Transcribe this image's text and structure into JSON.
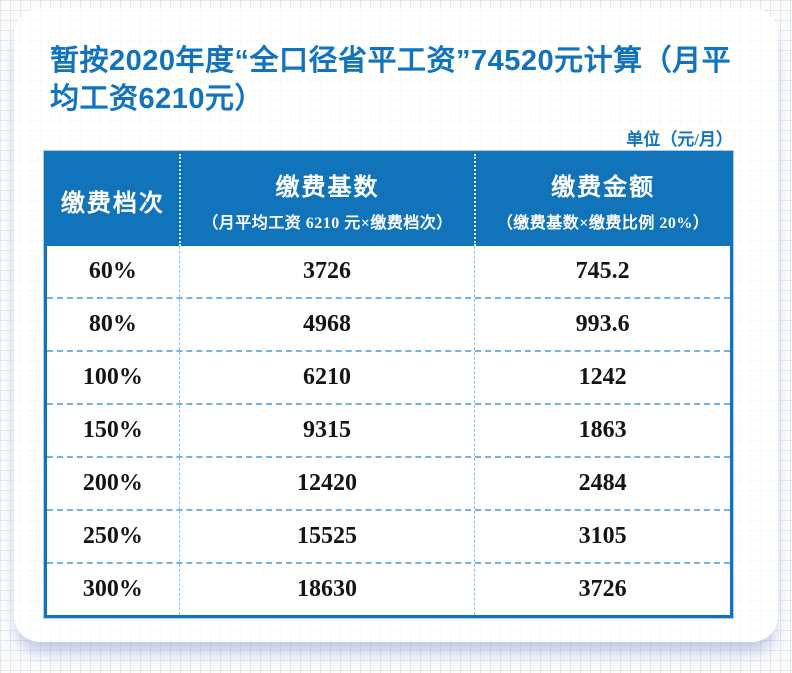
{
  "page": {
    "title": "暂按2020年度“全口径省平工资”74520元计算（月平均工资6210元）",
    "unit_note": "单位（元/月）"
  },
  "colors": {
    "accent_blue": "#1173ba",
    "title_blue": "#1173bd",
    "row_divider_blue": "#74b2e0",
    "body_text": "#141414",
    "card_bg": "#ffffff"
  },
  "table": {
    "columns": [
      {
        "label": "缴费档次",
        "sublabel": ""
      },
      {
        "label": "缴费基数",
        "sublabel": "（月平均工资 6210 元×缴费档次）"
      },
      {
        "label": "缴费金额",
        "sublabel": "（缴费基数×缴费比例 20%）"
      }
    ],
    "rows": [
      {
        "tier": "60%",
        "base": "3726",
        "amount": "745.2"
      },
      {
        "tier": "80%",
        "base": "4968",
        "amount": "993.6"
      },
      {
        "tier": "100%",
        "base": "6210",
        "amount": "1242"
      },
      {
        "tier": "150%",
        "base": "9315",
        "amount": "1863"
      },
      {
        "tier": "200%",
        "base": "12420",
        "amount": "2484"
      },
      {
        "tier": "250%",
        "base": "15525",
        "amount": "3105"
      },
      {
        "tier": "300%",
        "base": "18630",
        "amount": "3726"
      }
    ]
  }
}
